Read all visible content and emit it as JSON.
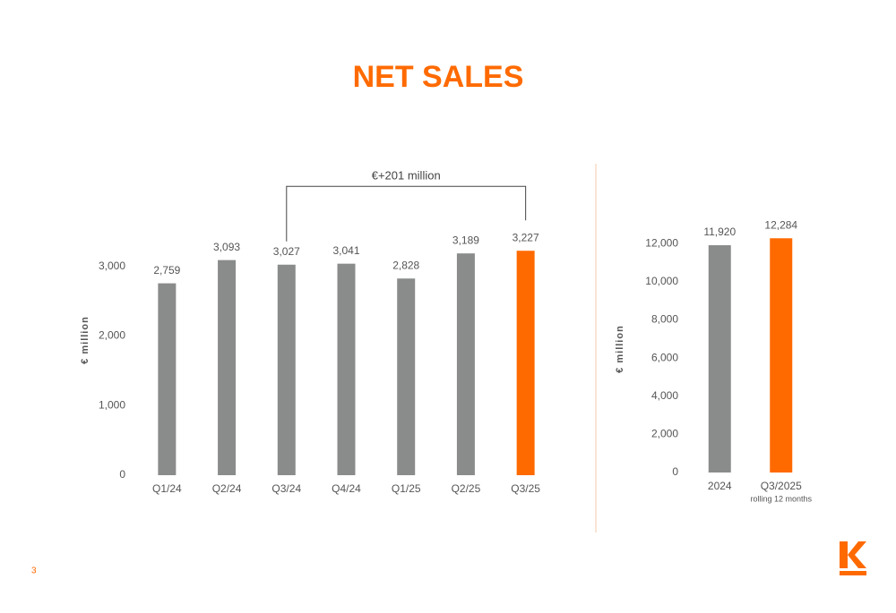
{
  "title": "NET SALES",
  "page_number": "3",
  "chart_data": [
    {
      "type": "bar",
      "ylabel": "€ million",
      "categories": [
        "Q1/24",
        "Q2/24",
        "Q3/24",
        "Q4/24",
        "Q1/25",
        "Q2/25",
        "Q3/25"
      ],
      "values": [
        2759,
        3093,
        3027,
        3041,
        2828,
        3189,
        3227
      ],
      "value_labels": [
        "2,759",
        "3,093",
        "3,027",
        "3,041",
        "2,828",
        "3,189",
        "3,227"
      ],
      "colors": [
        "#8a8c8b",
        "#8a8c8b",
        "#8a8c8b",
        "#8a8c8b",
        "#8a8c8b",
        "#8a8c8b",
        "#ff6a00"
      ],
      "ylim": [
        0,
        3500
      ],
      "yticks": [
        0,
        {
          "value": 1000,
          "label": "1,000"
        },
        {
          "value": 2000,
          "label": "2,000"
        },
        {
          "value": 3000,
          "label": "3,000"
        }
      ],
      "annotation": {
        "text": "€+201 million",
        "between": [
          "Q3/24",
          "Q3/25"
        ]
      }
    },
    {
      "type": "bar",
      "ylabel": "€ million",
      "categories": [
        "2024",
        "Q3/2025"
      ],
      "category_notes": [
        null,
        "rolling 12 months"
      ],
      "values": [
        11920,
        12284
      ],
      "value_labels": [
        "11,920",
        "12,284"
      ],
      "colors": [
        "#8a8c8b",
        "#ff6a00"
      ],
      "ylim": [
        0,
        13000
      ],
      "yticks": [
        0,
        {
          "value": 2000,
          "label": "2,000"
        },
        {
          "value": 4000,
          "label": "4,000"
        },
        {
          "value": 6000,
          "label": "6,000"
        },
        {
          "value": 8000,
          "label": "8,000"
        },
        {
          "value": 10000,
          "label": "10,000"
        },
        {
          "value": 12000,
          "label": "12,000"
        }
      ]
    }
  ]
}
